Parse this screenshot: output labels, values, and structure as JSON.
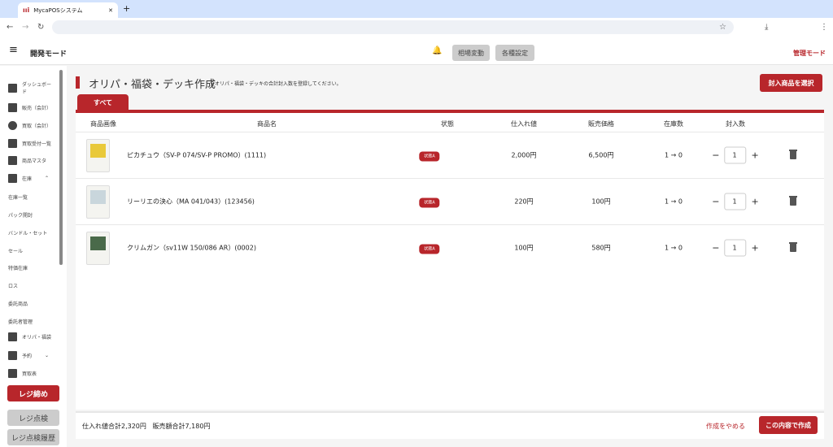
{
  "browser": {
    "tab_title": "MycaPOSシステム",
    "new_tab": "+",
    "close": "✕"
  },
  "header": {
    "menu_icon": "hamburger-icon",
    "mode": "開発モード",
    "buttons": [
      "相場変動",
      "各種設定"
    ],
    "admin_mode": "管理モード"
  },
  "sidebar": {
    "items": [
      {
        "label": "ダッシュボード",
        "icon": "dashboard-icon"
      },
      {
        "label": "販売（会計）",
        "icon": "cart-icon"
      },
      {
        "label": "買取（会計）",
        "icon": "dollar-icon"
      },
      {
        "label": "買取受付一覧",
        "icon": "register-icon"
      },
      {
        "label": "商品マスタ",
        "icon": "store-icon"
      },
      {
        "label": "在庫",
        "icon": "archive-icon"
      }
    ],
    "sub_items": [
      "在庫一覧",
      "パック開封",
      "バンドル・セット",
      "セール",
      "特価在庫",
      "ロス",
      "委託商品",
      "委託者管理"
    ],
    "items2": [
      {
        "label": "オリパ・福袋",
        "icon": "gift-icon"
      },
      {
        "label": "予約",
        "icon": "monitor-icon"
      },
      {
        "label": "買取表",
        "icon": "table-icon"
      }
    ],
    "close_register": "レジ締め",
    "check_register": "レジ点検",
    "check_history": "レジ点検履歴"
  },
  "main": {
    "title": "オリパ・福袋・デッキ作成",
    "subtitle": "全オリパ・福袋・デッキの合計封入数を登録してください。",
    "select_button": "封入商品を選択",
    "tab": "すべて",
    "columns": [
      "商品画像",
      "商品名",
      "状態",
      "仕入れ値",
      "販売価格",
      "在庫数",
      "封入数"
    ],
    "rows": [
      {
        "name": "ピカチュウ（SV-P 074/SV-P PROMO）(1111)",
        "condition": "状態A",
        "cost": "2,000円",
        "price": "6,500円",
        "stock": "1 → 0",
        "qty": "1",
        "card_color": "#e9c93a"
      },
      {
        "name": "リーリエの決心（MA 041/043）(123456)",
        "condition": "状態A",
        "cost": "220円",
        "price": "100円",
        "stock": "1 → 0",
        "qty": "1",
        "card_color": "#c9d6dc"
      },
      {
        "name": "クリムガン（sv11W 150/086 AR）(0002)",
        "condition": "状態A",
        "cost": "100円",
        "price": "580円",
        "stock": "1 → 0",
        "qty": "1",
        "card_color": "#4a6a4a"
      }
    ],
    "footer": {
      "total_cost": "仕入れ値合計2,320円",
      "total_price": "販売額合計7,180円",
      "cancel": "作成をやめる",
      "create": "この内容で作成"
    }
  },
  "colors": {
    "accent": "#b8262b"
  }
}
